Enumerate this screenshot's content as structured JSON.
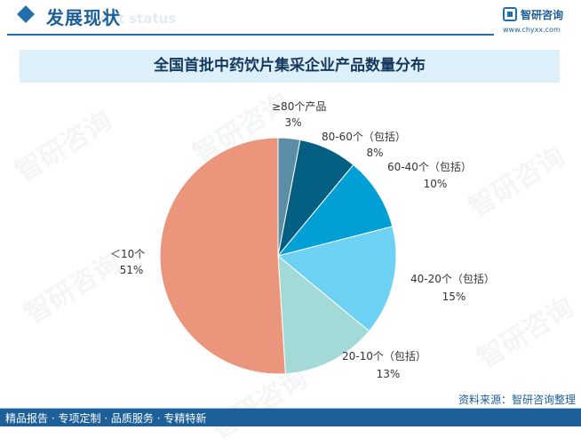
{
  "header": {
    "title": "发展现状",
    "subtitle": "ent status"
  },
  "logo": {
    "name": "智研咨询",
    "url": "www.chyxx.com"
  },
  "watermark": "智研咨询",
  "chart_data": {
    "type": "pie",
    "title": "全国首批中药饮片集采企业产品数量分布",
    "slices": [
      {
        "name": "≥80个产品",
        "value": 3,
        "value_label": "3%",
        "color": "#5b8ea4"
      },
      {
        "name": "80-60个（包括）",
        "value": 8,
        "value_label": "8%",
        "color": "#045f82"
      },
      {
        "name": "60-40个（包括）",
        "value": 10,
        "value_label": "10%",
        "color": "#009fd6"
      },
      {
        "name": "40-20个（包括）",
        "value": 15,
        "value_label": "15%",
        "color": "#6dd1f3"
      },
      {
        "name": "20-10个（包括）",
        "value": 13,
        "value_label": "13%",
        "color": "#a3d9d7"
      },
      {
        "name": "＜10个",
        "value": 51,
        "value_label": "51%",
        "color": "#ea957c"
      }
    ],
    "start_angle_deg": 0,
    "direction": "clockwise",
    "legend": "none"
  },
  "source": "资料来源：智研咨询整理",
  "footer": "精品报告 · 专项定制 · 品质服务 · 专精特新"
}
